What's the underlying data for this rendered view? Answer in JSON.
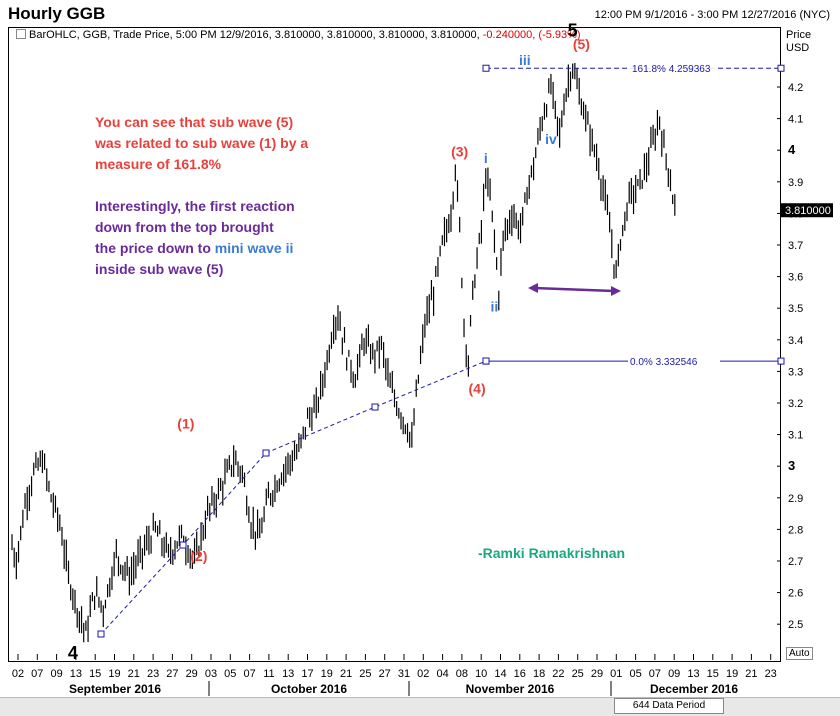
{
  "header": {
    "title": "Hourly GGB",
    "date_range": "12:00 PM 9/1/2016 - 3:00 PM 12/27/2016 (NYC)"
  },
  "info_bar": {
    "text": "BarOHLC, GGB, Trade Price, 5:00 PM 12/9/2016, 3.810000, 3.810000, 3.810000, 3.810000, ",
    "change": "-0.240000, (-5.93%)"
  },
  "price_axis": {
    "label_line1": "Price",
    "label_line2": "USD",
    "auto_button": "Auto"
  },
  "footer": {
    "data_period": "644 Data Period"
  },
  "annotations": {
    "note1": "You can see that sub wave (5) was related to sub wave (1) by a measure of 161.8%",
    "note2_a": "Interestingly, the first reaction down from the top brought the price down to ",
    "note2_b": "mini wave ii",
    "note2_c": " inside sub wave (5)",
    "signature": "-Ramki Ramakrishnan"
  },
  "colors": {
    "bars": "#000000",
    "fib": "#1a1aa8",
    "red_label": "#e8403a",
    "blue_label": "#3a7bd5",
    "purple": "#6a2a9a",
    "signature": "#1aa882"
  },
  "chart_data": {
    "type": "bar",
    "subtype": "ohlc",
    "title": "Hourly GGB",
    "ylabel": "Price USD",
    "ylim": [
      2.4,
      4.3
    ],
    "yticks": [
      "4.2",
      "4.1",
      "4",
      "3.9",
      "3.8",
      "3.7",
      "3.6",
      "3.5",
      "3.4",
      "3.3",
      "3.2",
      "3.1",
      "3",
      "2.9",
      "2.8",
      "2.7",
      "2.6",
      "2.5"
    ],
    "ytick_values": [
      4.2,
      4.1,
      4.0,
      3.9,
      3.8,
      3.7,
      3.6,
      3.5,
      3.4,
      3.3,
      3.2,
      3.1,
      3.0,
      2.9,
      2.8,
      2.7,
      2.6,
      2.5
    ],
    "bold_yticks": [
      "4",
      "3"
    ],
    "last_price_label": "3.810000",
    "last_price": 3.81,
    "xticks": [
      "02",
      "07",
      "09",
      "13",
      "15",
      "19",
      "21",
      "23",
      "27",
      "29",
      "03",
      "05",
      "07",
      "11",
      "13",
      "17",
      "19",
      "21",
      "25",
      "27",
      "31",
      "02",
      "04",
      "08",
      "10",
      "14",
      "16",
      "18",
      "22",
      "25",
      "29",
      "01",
      "05",
      "07",
      "09",
      "13",
      "15",
      "19",
      "21",
      "23"
    ],
    "months": [
      "September 2016",
      "October 2016",
      "November 2016",
      "December 2016"
    ],
    "fib_levels": [
      {
        "label": "161.8%",
        "value_label": "4.259363",
        "value": 4.259363
      },
      {
        "label": "0.0%",
        "value_label": "3.332546",
        "value": 3.332546
      }
    ],
    "price_path": [
      [
        0,
        2.75
      ],
      [
        1,
        2.7
      ],
      [
        3,
        2.88
      ],
      [
        5,
        2.98
      ],
      [
        7,
        3.02
      ],
      [
        9,
        2.9
      ],
      [
        11,
        2.82
      ],
      [
        13,
        2.65
      ],
      [
        15,
        2.55
      ],
      [
        17,
        2.47
      ],
      [
        19,
        2.6
      ],
      [
        21,
        2.55
      ],
      [
        24,
        2.72
      ],
      [
        27,
        2.65
      ],
      [
        30,
        2.73
      ],
      [
        33,
        2.8
      ],
      [
        36,
        2.72
      ],
      [
        39,
        2.78
      ],
      [
        42,
        2.7
      ],
      [
        45,
        2.85
      ],
      [
        48,
        2.93
      ],
      [
        51,
        3.02
      ],
      [
        53,
        2.98
      ],
      [
        55,
        2.82
      ],
      [
        57,
        2.78
      ],
      [
        59,
        2.9
      ],
      [
        61,
        2.95
      ],
      [
        63,
        3.0
      ],
      [
        66,
        3.05
      ],
      [
        68,
        3.15
      ],
      [
        70,
        3.18
      ],
      [
        72,
        3.3
      ],
      [
        74,
        3.45
      ],
      [
        75,
        3.48
      ],
      [
        77,
        3.35
      ],
      [
        79,
        3.28
      ],
      [
        81,
        3.4
      ],
      [
        83,
        3.35
      ],
      [
        85,
        3.38
      ],
      [
        87,
        3.25
      ],
      [
        89,
        3.18
      ],
      [
        91,
        3.12
      ],
      [
        92,
        3.07
      ],
      [
        93,
        3.22
      ],
      [
        95,
        3.45
      ],
      [
        97,
        3.55
      ],
      [
        99,
        3.7
      ],
      [
        101,
        3.8
      ],
      [
        102,
        3.95
      ],
      [
        103,
        3.75
      ],
      [
        104,
        3.45
      ],
      [
        105,
        3.33
      ],
      [
        106,
        3.55
      ],
      [
        108,
        3.75
      ],
      [
        109,
        3.92
      ],
      [
        110,
        3.85
      ],
      [
        111,
        3.72
      ],
      [
        112,
        3.55
      ],
      [
        113,
        3.72
      ],
      [
        115,
        3.8
      ],
      [
        117,
        3.75
      ],
      [
        119,
        3.9
      ],
      [
        120,
        3.95
      ],
      [
        122,
        4.1
      ],
      [
        124,
        4.2
      ],
      [
        125,
        4.12
      ],
      [
        126,
        4.05
      ],
      [
        127,
        4.15
      ],
      [
        128,
        4.22
      ],
      [
        129,
        4.27
      ],
      [
        130,
        4.2
      ],
      [
        131,
        4.15
      ],
      [
        133,
        4.05
      ],
      [
        135,
        3.95
      ],
      [
        137,
        3.8
      ],
      [
        138,
        3.7
      ],
      [
        139,
        3.6
      ],
      [
        140,
        3.72
      ],
      [
        142,
        3.85
      ],
      [
        144,
        3.88
      ],
      [
        146,
        3.95
      ],
      [
        148,
        4.05
      ],
      [
        149,
        4.1
      ],
      [
        150,
        4.0
      ],
      [
        151,
        3.95
      ],
      [
        152,
        3.85
      ],
      [
        153,
        3.81
      ]
    ],
    "wave_labels": [
      {
        "text": "5",
        "style": "black-big",
        "x": 129,
        "y": 4.36
      },
      {
        "text": "4",
        "style": "black-big",
        "x": 14,
        "y": 2.39
      },
      {
        "text": "(1)",
        "style": "red",
        "x": 40,
        "y": 3.12
      },
      {
        "text": "(2)",
        "style": "red",
        "x": 43,
        "y": 2.7
      },
      {
        "text": "(3)",
        "style": "red",
        "x": 103,
        "y": 3.98
      },
      {
        "text": "(4)",
        "style": "red",
        "x": 107,
        "y": 3.23
      },
      {
        "text": "(5)",
        "style": "red",
        "x": 131,
        "y": 4.32
      },
      {
        "text": "i",
        "style": "blue",
        "x": 109,
        "y": 3.96
      },
      {
        "text": "ii",
        "style": "blue",
        "x": 111,
        "y": 3.49
      },
      {
        "text": "iii",
        "style": "blue",
        "x": 118,
        "y": 4.27
      },
      {
        "text": "iv",
        "style": "blue",
        "x": 124,
        "y": 4.02
      }
    ]
  }
}
